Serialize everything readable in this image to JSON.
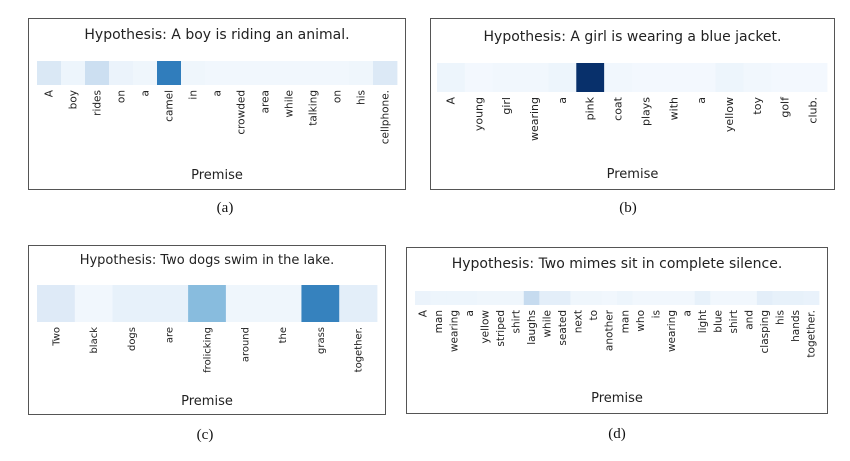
{
  "chart_data": [
    {
      "type": "heatmap",
      "title": "Hypothesis: A boy is riding an animal.",
      "xlabel": "Premise",
      "caption": "(a)",
      "tokens": [
        "A",
        "boy",
        "rides",
        "on",
        "a",
        "camel",
        "in",
        "a",
        "crowded",
        "area",
        "while",
        "talking",
        "on",
        "his",
        "cellphone."
      ],
      "values": [
        0.15,
        0.05,
        0.22,
        0.06,
        0.04,
        0.7,
        0.04,
        0.03,
        0.03,
        0.03,
        0.03,
        0.03,
        0.03,
        0.04,
        0.14
      ]
    },
    {
      "type": "heatmap",
      "title": "Hypothesis: A girl is wearing a blue jacket.",
      "xlabel": "Premise",
      "caption": "(b)",
      "tokens": [
        "A",
        "young",
        "girl",
        "wearing",
        "a",
        "pink",
        "coat",
        "plays",
        "with",
        "a",
        "yellow",
        "toy",
        "golf",
        "club."
      ],
      "values": [
        0.05,
        0.02,
        0.03,
        0.03,
        0.05,
        1.0,
        0.03,
        0.02,
        0.02,
        0.02,
        0.05,
        0.03,
        0.02,
        0.02
      ]
    },
    {
      "type": "heatmap",
      "title": "Hypothesis: Two dogs swim in the lake.",
      "xlabel": "Premise",
      "caption": "(c)",
      "tokens": [
        "Two",
        "black",
        "dogs",
        "are",
        "frolicking",
        "around",
        "the",
        "grass",
        "together."
      ],
      "values": [
        0.13,
        0.03,
        0.08,
        0.08,
        0.42,
        0.04,
        0.04,
        0.68,
        0.1
      ]
    },
    {
      "type": "heatmap",
      "title": "Hypothesis: Two mimes sit in complete silence.",
      "xlabel": "Premise",
      "caption": "(d)",
      "tokens": [
        "A",
        "man",
        "wearing",
        "a",
        "yellow",
        "striped",
        "shirt",
        "laughs",
        "while",
        "seated",
        "next",
        "to",
        "another",
        "man",
        "who",
        "is",
        "wearing",
        "a",
        "light",
        "blue",
        "shirt",
        "and",
        "clasping",
        "his",
        "hands",
        "together."
      ],
      "values": [
        0.06,
        0.05,
        0.05,
        0.05,
        0.04,
        0.04,
        0.04,
        0.25,
        0.1,
        0.1,
        0.04,
        0.04,
        0.03,
        0.05,
        0.03,
        0.03,
        0.03,
        0.03,
        0.08,
        0.03,
        0.03,
        0.03,
        0.1,
        0.08,
        0.08,
        0.07
      ]
    }
  ]
}
